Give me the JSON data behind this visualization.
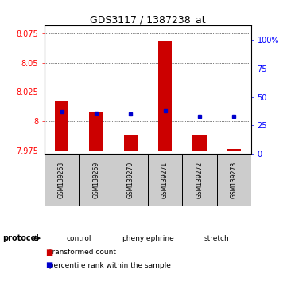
{
  "title": "GDS3117 / 1387238_at",
  "samples": [
    "GSM139268",
    "GSM139269",
    "GSM139270",
    "GSM139271",
    "GSM139272",
    "GSM139273"
  ],
  "red_values": [
    8.017,
    8.008,
    7.988,
    8.068,
    7.988,
    7.976
  ],
  "red_base": 7.975,
  "ylim_left": [
    7.972,
    8.082
  ],
  "yticks_left": [
    7.975,
    8.0,
    8.025,
    8.05,
    8.075
  ],
  "ytick_labels_left": [
    "7.975",
    "8",
    "8.025",
    "8.05",
    "8.075"
  ],
  "ylim_right": [
    0,
    113
  ],
  "yticks_right": [
    0,
    25,
    50,
    75,
    100
  ],
  "ytick_labels_right": [
    "0",
    "25",
    "50",
    "75",
    "100%"
  ],
  "blue_pct": [
    37,
    36,
    35,
    38,
    33,
    33
  ],
  "protocols": [
    {
      "label": "control",
      "spans": [
        0,
        2
      ],
      "color": "#ccffcc"
    },
    {
      "label": "phenylephrine",
      "spans": [
        2,
        4
      ],
      "color": "#99ee99"
    },
    {
      "label": "stretch",
      "spans": [
        4,
        6
      ],
      "color": "#33cc33"
    }
  ],
  "protocol_label": "protocol",
  "legend_red": "transformed count",
  "legend_blue": "percentile rank within the sample",
  "bar_color": "#cc0000",
  "dot_color": "#0000cc",
  "bg_color": "#ffffff",
  "sample_bg": "#cccccc",
  "bar_width": 0.4
}
